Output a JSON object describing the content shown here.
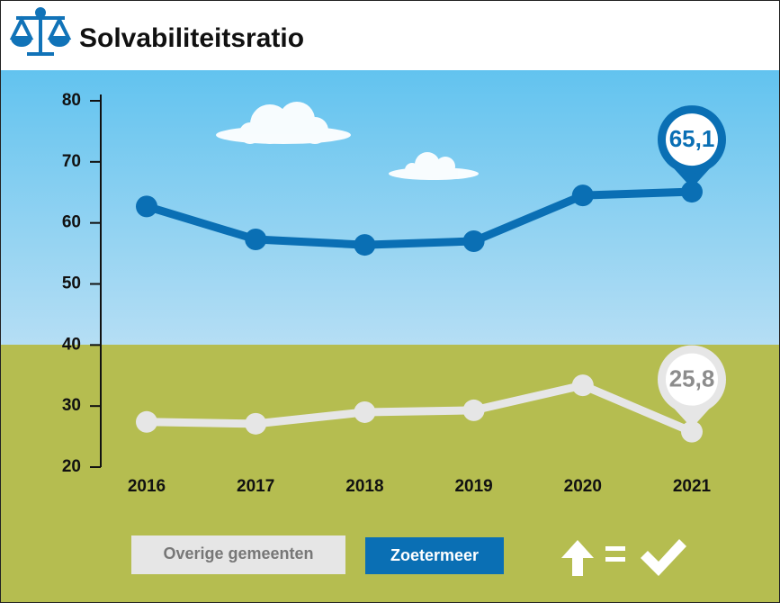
{
  "chart_data": {
    "type": "line",
    "title": "Solvabiliteitsratio",
    "categories": [
      "2016",
      "2017",
      "2018",
      "2019",
      "2020",
      "2021"
    ],
    "series": [
      {
        "name": "Zoetermeer",
        "color": "#0a6fb4",
        "values": [
          62.7,
          57.3,
          56.4,
          57.0,
          64.5,
          65.1
        ],
        "value_labels": [
          null,
          null,
          null,
          null,
          null,
          "65,1"
        ]
      },
      {
        "name": "Overige gemeenten",
        "color": "#e6e6e6",
        "values": [
          27.4,
          27.1,
          29.0,
          29.3,
          33.4,
          25.8
        ],
        "value_labels": [
          null,
          null,
          null,
          null,
          null,
          "25,8"
        ]
      }
    ],
    "ylim": [
      20,
      80
    ],
    "yticks": [
      20,
      30,
      40,
      50,
      60,
      70,
      80
    ]
  }
}
